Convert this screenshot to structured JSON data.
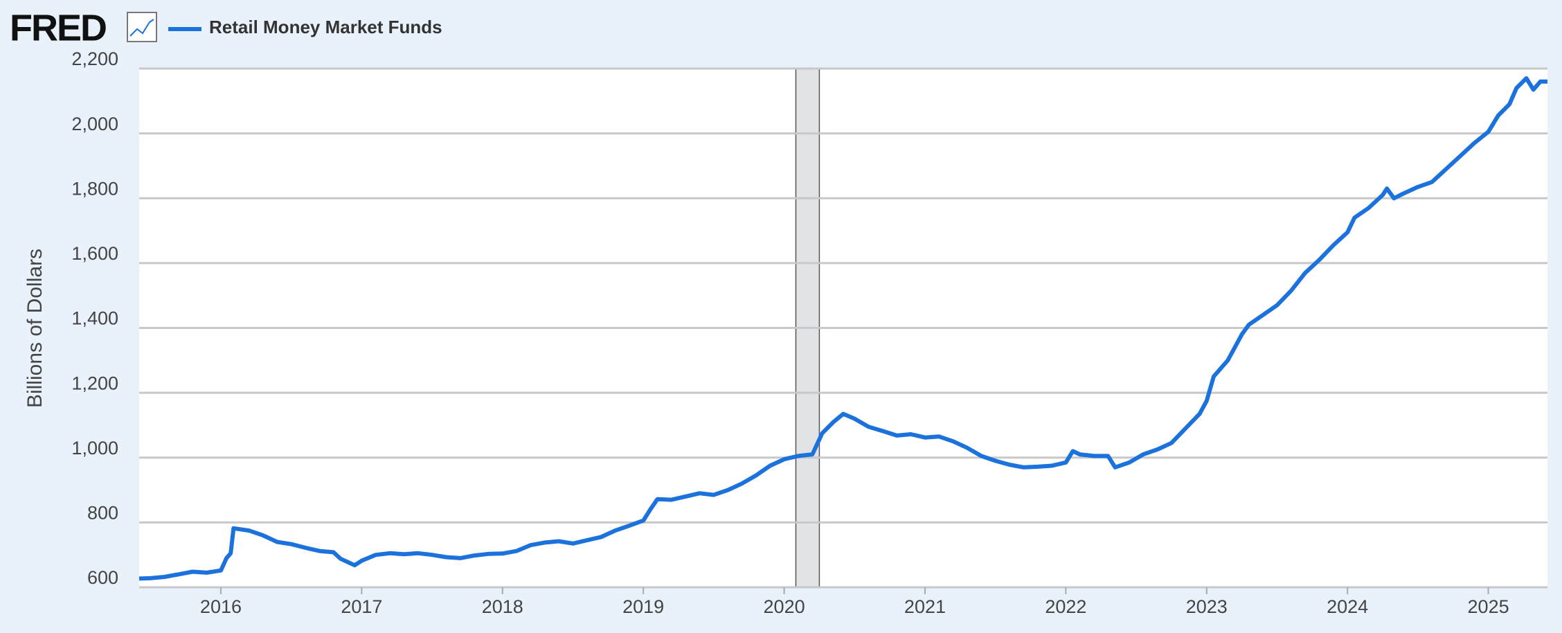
{
  "brand": "FRED",
  "chart_data": {
    "type": "line",
    "y_label": "Billions of Dollars",
    "x": [
      2015.42,
      2015.5,
      2015.6,
      2015.7,
      2015.8,
      2015.9,
      2016.0,
      2016.04,
      2016.07,
      2016.09,
      2016.2,
      2016.3,
      2016.4,
      2016.5,
      2016.6,
      2016.7,
      2016.8,
      2016.85,
      2016.95,
      2017.0,
      2017.1,
      2017.2,
      2017.3,
      2017.4,
      2017.5,
      2017.6,
      2017.7,
      2017.8,
      2017.9,
      2018.0,
      2018.1,
      2018.2,
      2018.3,
      2018.4,
      2018.5,
      2018.6,
      2018.7,
      2018.8,
      2018.9,
      2019.0,
      2019.05,
      2019.1,
      2019.2,
      2019.3,
      2019.4,
      2019.5,
      2019.6,
      2019.7,
      2019.8,
      2019.9,
      2020.0,
      2020.1,
      2020.2,
      2020.27,
      2020.35,
      2020.42,
      2020.5,
      2020.6,
      2020.7,
      2020.8,
      2020.9,
      2021.0,
      2021.1,
      2021.2,
      2021.3,
      2021.4,
      2021.5,
      2021.6,
      2021.7,
      2021.8,
      2021.9,
      2022.0,
      2022.05,
      2022.1,
      2022.2,
      2022.3,
      2022.35,
      2022.45,
      2022.55,
      2022.65,
      2022.75,
      2022.85,
      2022.95,
      2023.0,
      2023.05,
      2023.15,
      2023.25,
      2023.3,
      2023.4,
      2023.5,
      2023.6,
      2023.7,
      2023.8,
      2023.9,
      2024.0,
      2024.05,
      2024.15,
      2024.25,
      2024.28,
      2024.33,
      2024.4,
      2024.5,
      2024.6,
      2024.7,
      2024.8,
      2024.9,
      2025.0,
      2025.07,
      2025.15,
      2025.2,
      2025.27,
      2025.32,
      2025.37,
      2025.42
    ],
    "series": [
      {
        "name": "Retail Money Market Funds",
        "color": "#1b72dd",
        "values": [
          627,
          628,
          632,
          640,
          648,
          645,
          652,
          690,
          705,
          782,
          775,
          760,
          740,
          733,
          722,
          712,
          708,
          688,
          668,
          682,
          700,
          705,
          702,
          705,
          700,
          693,
          690,
          698,
          703,
          704,
          712,
          730,
          738,
          742,
          735,
          745,
          755,
          775,
          790,
          806,
          840,
          872,
          870,
          880,
          890,
          885,
          900,
          920,
          945,
          975,
          995,
          1005,
          1010,
          1075,
          1110,
          1135,
          1120,
          1095,
          1082,
          1068,
          1072,
          1062,
          1065,
          1050,
          1030,
          1005,
          990,
          978,
          970,
          972,
          975,
          985,
          1020,
          1010,
          1005,
          1005,
          970,
          985,
          1010,
          1025,
          1045,
          1090,
          1135,
          1175,
          1250,
          1300,
          1380,
          1410,
          1440,
          1470,
          1515,
          1570,
          1610,
          1655,
          1695,
          1740,
          1770,
          1810,
          1830,
          1800,
          1815,
          1835,
          1850,
          1890,
          1930,
          1970,
          2005,
          2055,
          2090,
          2140,
          2170,
          2135,
          2160,
          2160
        ]
      }
    ],
    "recessions": [
      [
        2020.083,
        2020.25
      ]
    ],
    "xlim": [
      2015.42,
      2025.42
    ],
    "xticks": [
      2016,
      2017,
      2018,
      2019,
      2020,
      2021,
      2022,
      2023,
      2024,
      2025
    ],
    "ylim": [
      600,
      2200
    ],
    "yticks": [
      600,
      800,
      {
        "value": 1000,
        "label": "1,000"
      },
      {
        "value": 1200,
        "label": "1,200"
      },
      {
        "value": 1400,
        "label": "1,400"
      },
      {
        "value": 1600,
        "label": "1,600"
      },
      {
        "value": 1800,
        "label": "1,800"
      },
      {
        "value": 2000,
        "label": "2,000"
      },
      {
        "value": 2200,
        "label": "2,200"
      }
    ],
    "grid": true
  }
}
